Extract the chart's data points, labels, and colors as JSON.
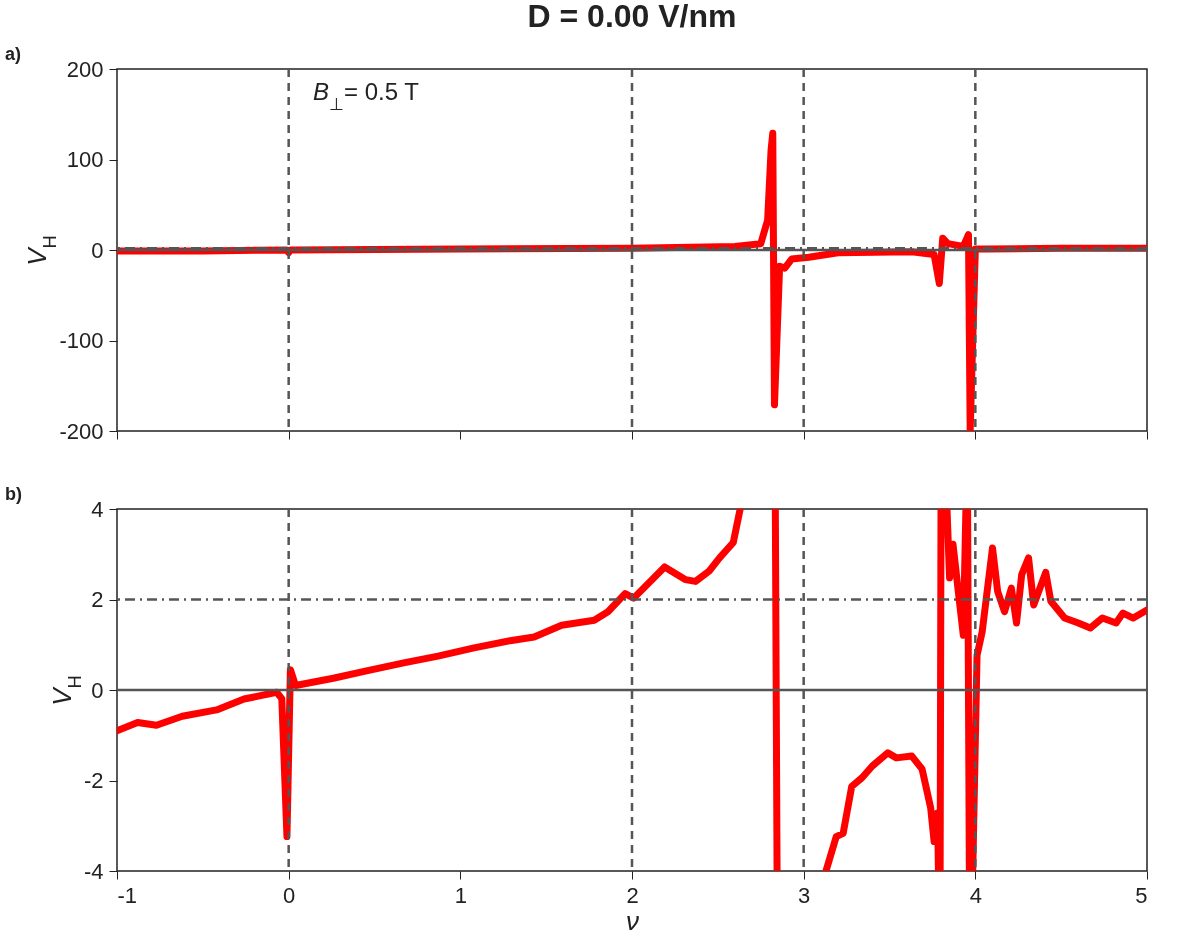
{
  "chart_data": [
    {
      "type": "line",
      "title": "D = 0.00 V/nm",
      "ylabel": "V$_{H}$",
      "annotations": [
        "a)",
        "B$_{⊥}$= 0.5 T"
      ],
      "xlim": [
        -1,
        5
      ],
      "xticks": [
        -1,
        0,
        1,
        2,
        3,
        4,
        5
      ],
      "ylim": [
        -200,
        200
      ],
      "yticks": [
        -200,
        -100,
        0,
        100,
        200
      ],
      "tick_labels": "y",
      "series": [
        {
          "color": "#ff0000",
          "x": [
            -1,
            -0.5,
            -0.01,
            0,
            0.01,
            1,
            2,
            2.6,
            2.75,
            2.79,
            2.81,
            2.82,
            2.83,
            2.86,
            2.89,
            2.93,
            3.03,
            3.2,
            3.63,
            3.76,
            3.79,
            3.81,
            3.84,
            3.93,
            3.96,
            3.97,
            4.0,
            4.07,
            4.5,
            5
          ],
          "values": [
            -1,
            -1,
            0,
            -3,
            0,
            1,
            2,
            4,
            7,
            33,
            110,
            129,
            -171,
            -18,
            -20,
            -10,
            -8,
            -3,
            -2,
            -5,
            -37,
            13,
            7,
            4,
            17,
            -200,
            1,
            1,
            2,
            2
          ]
        }
      ],
      "ref_lines": [
        {
          "axis": "x",
          "value": 0,
          "color": "#555555",
          "line_style": "dashed"
        },
        {
          "axis": "x",
          "value": 2,
          "color": "#555555",
          "line_style": "dashed"
        },
        {
          "axis": "x",
          "value": 3,
          "color": "#555555",
          "line_style": "dashed"
        },
        {
          "axis": "x",
          "value": 4,
          "color": "#555555",
          "line_style": "dashed"
        },
        {
          "axis": "y",
          "value": 0,
          "color": "#555555",
          "line_style": "solid"
        },
        {
          "axis": "y",
          "value": 2,
          "color": "#555555",
          "line_style": "dashdot"
        }
      ]
    },
    {
      "type": "line",
      "xlabel": "ν",
      "ylabel": "V$_{H}$",
      "annotations": [
        "b)"
      ],
      "xlim": [
        -1,
        5
      ],
      "xticks": [
        -1,
        0,
        1,
        2,
        3,
        4,
        5
      ],
      "ylim": [
        -4,
        4
      ],
      "yticks": [
        -4,
        -2,
        0,
        2,
        4
      ],
      "series": [
        {
          "color": "#ff0000",
          "x": [
            -1,
            -0.88,
            -0.77,
            -0.62,
            -0.42,
            -0.26,
            -0.07,
            -0.04,
            -0.01,
            0.01,
            0.04,
            0.26,
            0.46,
            0.67,
            0.87,
            1.08,
            1.29,
            1.43,
            1.59,
            1.78,
            1.86,
            1.96,
            2.01,
            2.19,
            2.31,
            2.37,
            2.45,
            2.51,
            2.59,
            2.63,
            2.73,
            2.835,
            2.845,
            3.0,
            3.13,
            3.19,
            3.23,
            3.28,
            3.34,
            3.4,
            3.49,
            3.54,
            3.63,
            3.69,
            3.74,
            3.76,
            3.78,
            3.785,
            3.79,
            3.795,
            3.8,
            3.82,
            3.835,
            3.85,
            3.87,
            3.9,
            3.93,
            3.945,
            3.95,
            3.955,
            3.965,
            3.975,
            3.985,
            4.01,
            4.04,
            4.1,
            4.13,
            4.17,
            4.21,
            4.24,
            4.27,
            4.31,
            4.34,
            4.41,
            4.44,
            4.52,
            4.6,
            4.67,
            4.74,
            4.82,
            4.86,
            4.92,
            5.0
          ],
          "values": [
            -0.9,
            -0.72,
            -0.78,
            -0.58,
            -0.44,
            -0.2,
            -0.05,
            -0.19,
            -3.24,
            0.45,
            0.1,
            0.26,
            0.43,
            0.6,
            0.75,
            0.93,
            1.09,
            1.17,
            1.43,
            1.54,
            1.73,
            2.13,
            2.03,
            2.72,
            2.44,
            2.4,
            2.63,
            2.92,
            3.26,
            4,
            null,
            4,
            -4,
            null,
            -4,
            -3.24,
            -3.17,
            -2.13,
            -1.94,
            -1.68,
            -1.39,
            -1.5,
            -1.46,
            -1.75,
            -2.61,
            -3.35,
            -2.72,
            -4,
            null,
            -4,
            4,
            null,
            4,
            2.48,
            3.22,
            2.2,
            1.21,
            4,
            null,
            4,
            -4,
            null,
            -4,
            0.77,
            1.29,
            3.14,
            2.18,
            1.73,
            2.25,
            1.48,
            2.55,
            2.92,
            1.88,
            2.6,
            1.96,
            1.59,
            1.48,
            1.37,
            1.59,
            1.48,
            1.7,
            1.59,
            1.77
          ]
        }
      ],
      "ref_lines": [
        {
          "axis": "x",
          "value": 0,
          "color": "#555555",
          "line_style": "dashed"
        },
        {
          "axis": "x",
          "value": 2,
          "color": "#555555",
          "line_style": "dashed"
        },
        {
          "axis": "x",
          "value": 3,
          "color": "#555555",
          "line_style": "dashed"
        },
        {
          "axis": "x",
          "value": 4,
          "color": "#555555",
          "line_style": "dashed"
        },
        {
          "axis": "y",
          "value": 0,
          "color": "#555555",
          "line_style": "solid"
        },
        {
          "axis": "y",
          "value": 2,
          "color": "#555555",
          "line_style": "dashdot"
        }
      ]
    }
  ]
}
